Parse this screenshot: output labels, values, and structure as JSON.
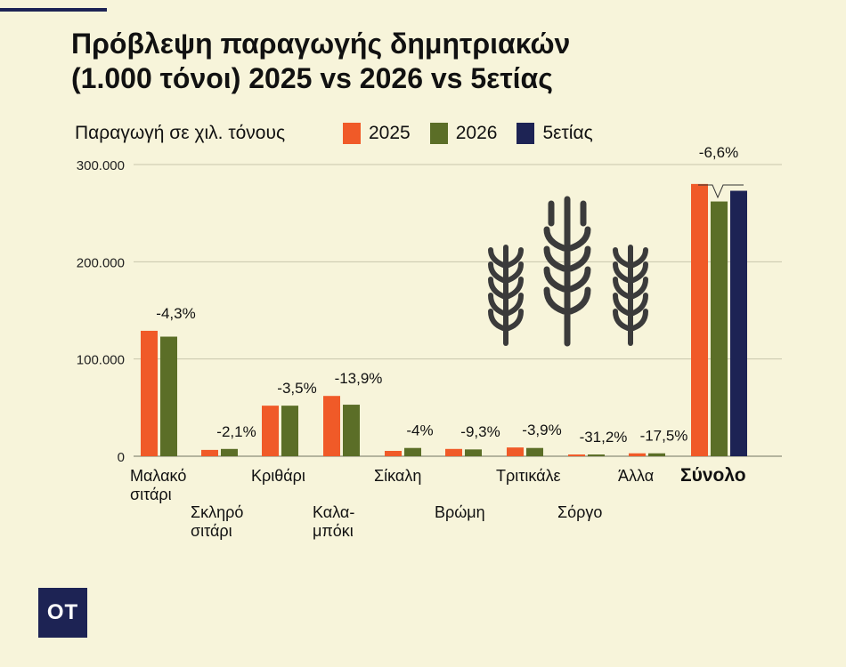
{
  "header": {
    "title_line1": "Πρόβλεψη παραγωγής δημητριακών",
    "title_line2": "(1.000 τόνοι) 2025 vs 2026 vs 5ετίας",
    "subtitle": "Παραγωγή σε χιλ. τόνους"
  },
  "legend": [
    {
      "label": "2025",
      "color": "#f05a28"
    },
    {
      "label": "2026",
      "color": "#5b6e27"
    },
    {
      "label": "5ετίας",
      "color": "#1d2354"
    }
  ],
  "logo": {
    "text": "OT"
  },
  "chart_data": {
    "type": "bar",
    "title": "Πρόβλεψη παραγωγής δημητριακών (1.000 τόνοι) 2025 vs 2026 vs 5ετίας",
    "ylabel": "Παραγωγή σε χιλ. τόνους",
    "ylim": [
      0,
      300000
    ],
    "yticks": [
      {
        "value": 0,
        "label": "0"
      },
      {
        "value": 100000,
        "label": "100.000"
      },
      {
        "value": 200000,
        "label": "200.000"
      },
      {
        "value": 300000,
        "label": "300.000"
      }
    ],
    "grid": true,
    "legend_position": "top",
    "categories": [
      {
        "label": [
          "Μαλακό",
          "σιτάρι"
        ],
        "row": 0
      },
      {
        "label": [
          "Σκληρό",
          "σιτάρι"
        ],
        "row": 1
      },
      {
        "label": [
          "Κριθάρι"
        ],
        "row": 0
      },
      {
        "label": [
          "Καλα-",
          "μπόκι"
        ],
        "row": 1
      },
      {
        "label": [
          "Σίκαλη"
        ],
        "row": 0
      },
      {
        "label": [
          "Βρώμη"
        ],
        "row": 1
      },
      {
        "label": [
          "Τριτικάλε"
        ],
        "row": 0
      },
      {
        "label": [
          "Σόργο"
        ],
        "row": 1
      },
      {
        "label": [
          "Άλλα"
        ],
        "row": 0
      },
      {
        "label": [
          "Σύνολο"
        ],
        "row": 0,
        "emphasis": true
      }
    ],
    "series": [
      {
        "name": "2025",
        "color": "#f05a28",
        "values": [
          129000,
          6500,
          52000,
          62000,
          5500,
          7500,
          9000,
          1800,
          3000,
          280000
        ]
      },
      {
        "name": "2026",
        "color": "#5b6e27",
        "values": [
          123000,
          7500,
          52000,
          53000,
          8500,
          7000,
          8500,
          1800,
          3000,
          262000
        ]
      },
      {
        "name": "5ετίας",
        "color": "#1d2354",
        "values": [
          null,
          null,
          null,
          null,
          null,
          null,
          null,
          null,
          null,
          273000
        ]
      }
    ],
    "annotations": [
      "-4,3%",
      "-2,1%",
      "-3,5%",
      "-13,9%",
      "-4%",
      "-9,3%",
      "-3,9%",
      "-31,2%",
      "-17,5%",
      "-6,6%"
    ]
  }
}
